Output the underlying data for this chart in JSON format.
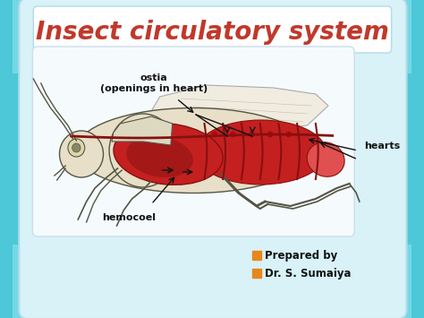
{
  "title": "Insect circulatory system",
  "title_color": "#c0392b",
  "title_fontsize": 20,
  "slide_bg": "#4dc8d8",
  "corner_color": "#7adce8",
  "main_box_face": "#d8f2f8",
  "main_box_edge": "#b0dce8",
  "inner_box_face": "#f5fbfd",
  "inner_box_edge": "#ccddee",
  "label_ostia": "ostia\n(openings in heart)",
  "label_hearts": "hearts",
  "label_hemocoel": "hemocoel",
  "bullet1": "Prepared by",
  "bullet2": "Dr. S. Sumaiya",
  "bullet_color": "#e8871a",
  "text_color": "#111111",
  "arrow_color": "#111111",
  "body_outline": "#555544",
  "body_light": "#e8dfc8",
  "red_fill": "#c42020",
  "red_light": "#e05050",
  "dark_red": "#881010",
  "wing_fill": "#f0ece0",
  "wing_edge": "#aaaaaa"
}
